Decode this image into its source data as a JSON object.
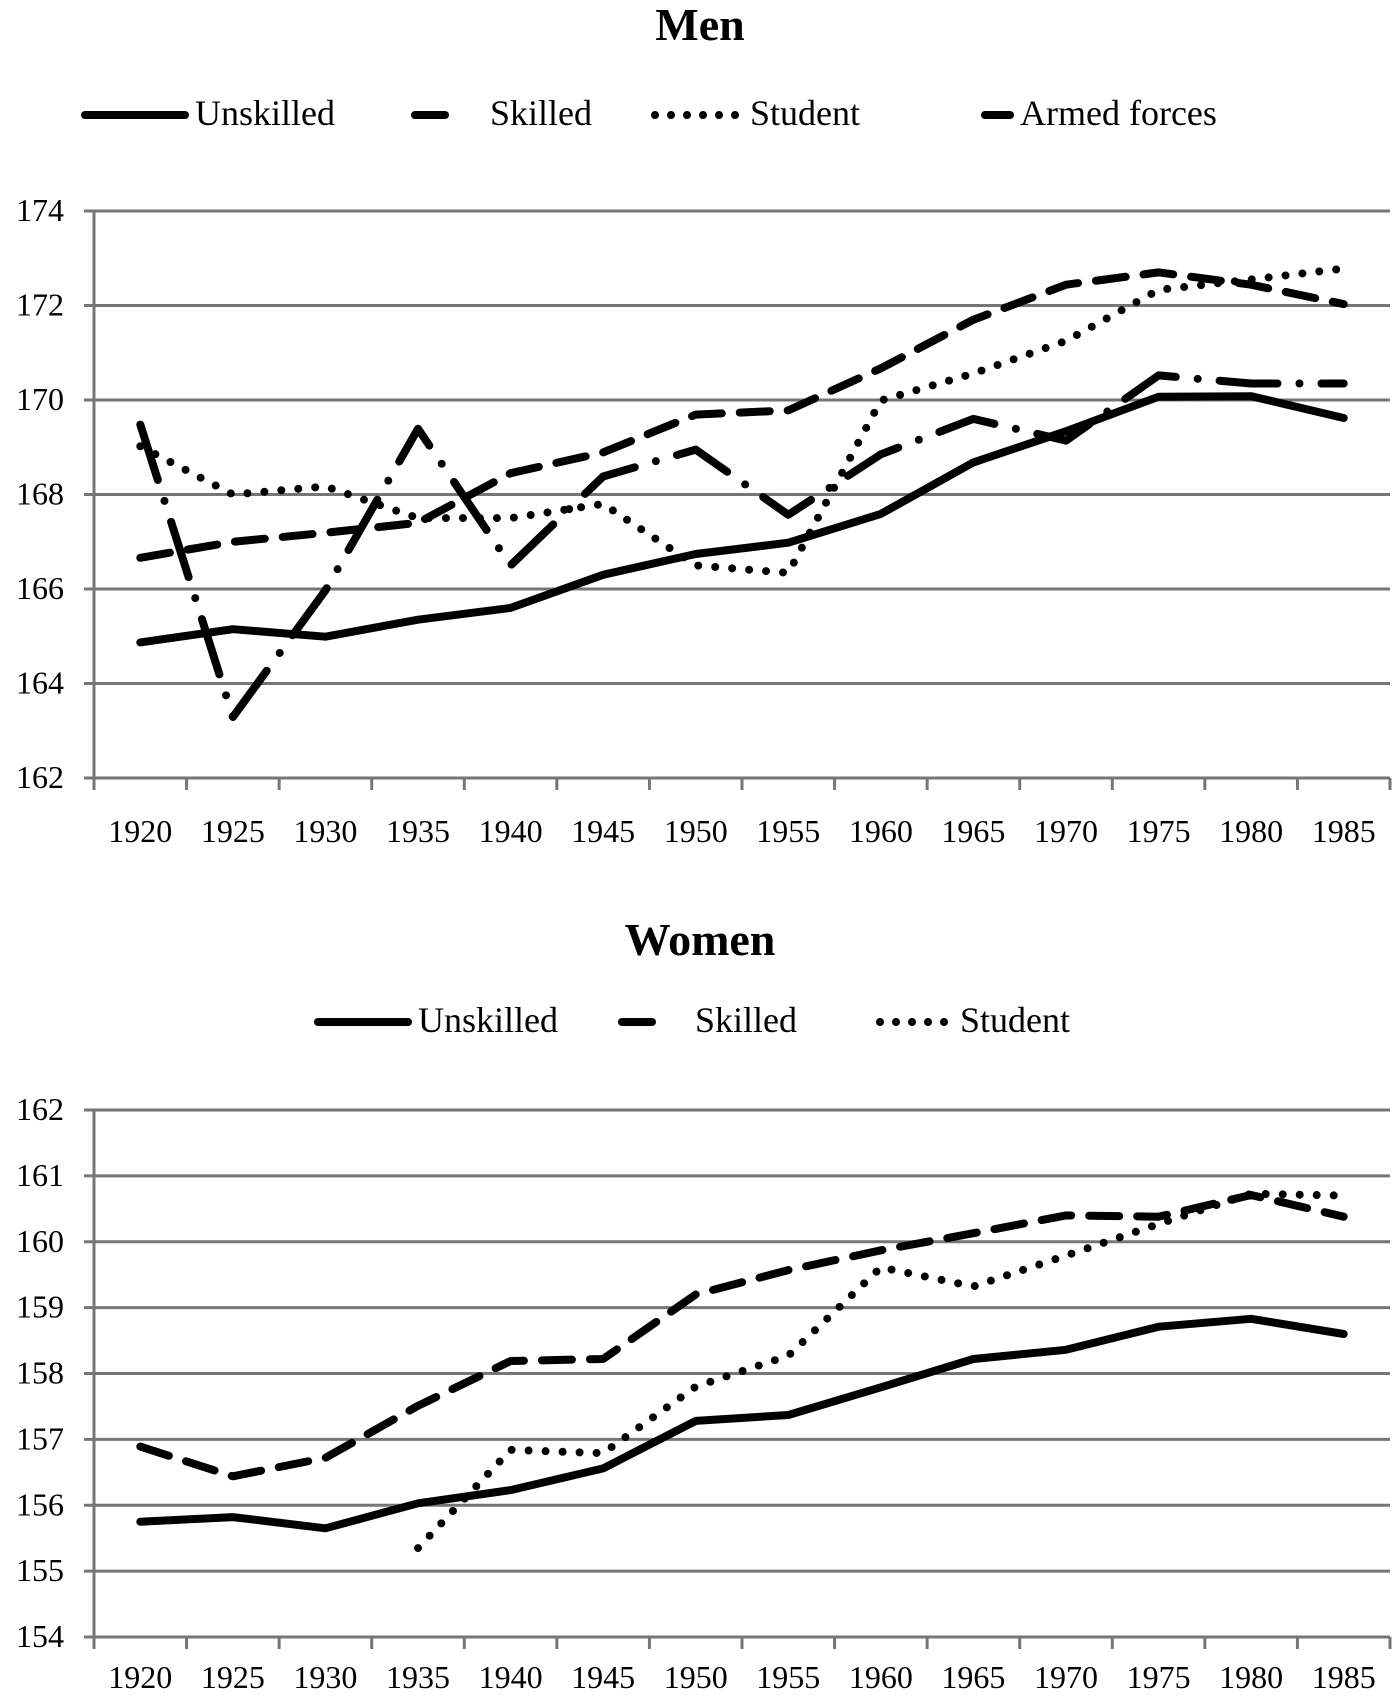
{
  "chart_data": [
    {
      "type": "line",
      "title": "Men",
      "legend_position": "top",
      "grid": true,
      "categories": [
        "1920",
        "1925",
        "1930",
        "1935",
        "1940",
        "1945",
        "1950",
        "1955",
        "1960",
        "1965",
        "1970",
        "1975",
        "1980",
        "1985"
      ],
      "ylim": [
        162,
        174
      ],
      "yticks": [
        "162",
        "164",
        "166",
        "168",
        "170",
        "172",
        "174"
      ],
      "series": [
        {
          "name": "Unskilled",
          "style": "solid",
          "values": [
            164.87,
            165.15,
            164.99,
            165.35,
            165.6,
            166.3,
            166.74,
            166.98,
            167.59,
            168.68,
            169.34,
            170.07,
            170.08,
            169.62
          ]
        },
        {
          "name": "Skilled",
          "style": "dashed",
          "values": [
            166.66,
            167.0,
            167.19,
            167.4,
            168.45,
            168.89,
            169.69,
            169.78,
            170.67,
            171.7,
            172.44,
            172.7,
            172.44,
            172.03
          ]
        },
        {
          "name": "Student",
          "style": "dotted",
          "values": [
            169.02,
            168.0,
            168.17,
            167.5,
            167.5,
            167.8,
            166.5,
            166.34,
            169.99,
            170.56,
            171.25,
            172.33,
            172.55,
            172.78
          ]
        },
        {
          "name": "Armed forces",
          "style": "dash-dot",
          "values": [
            169.48,
            163.29,
            165.97,
            169.39,
            166.5,
            168.38,
            168.95,
            167.57,
            168.85,
            169.6,
            169.14,
            170.52,
            170.35,
            170.35
          ]
        }
      ]
    },
    {
      "type": "line",
      "title": "Women",
      "legend_position": "top",
      "grid": true,
      "categories": [
        "1920",
        "1925",
        "1930",
        "1935",
        "1940",
        "1945",
        "1950",
        "1955",
        "1960",
        "1965",
        "1970",
        "1975",
        "1980",
        "1985"
      ],
      "ylim": [
        154,
        162
      ],
      "yticks": [
        "154",
        "155",
        "156",
        "157",
        "158",
        "159",
        "160",
        "161",
        "162"
      ],
      "series": [
        {
          "name": "Unskilled",
          "style": "solid",
          "values": [
            155.75,
            155.82,
            155.65,
            156.03,
            156.23,
            156.56,
            157.28,
            157.37,
            157.79,
            158.22,
            158.36,
            158.71,
            158.83,
            158.6
          ]
        },
        {
          "name": "Skilled",
          "style": "dashed",
          "values": [
            156.89,
            156.44,
            156.72,
            157.51,
            158.19,
            158.22,
            159.2,
            159.57,
            159.87,
            160.13,
            160.4,
            160.38,
            160.71,
            160.38
          ]
        },
        {
          "name": "Student",
          "style": "dotted",
          "values": [
            null,
            null,
            null,
            155.35,
            156.84,
            156.79,
            157.8,
            158.27,
            159.61,
            159.32,
            159.79,
            160.27,
            160.73,
            160.7
          ]
        }
      ]
    }
  ]
}
